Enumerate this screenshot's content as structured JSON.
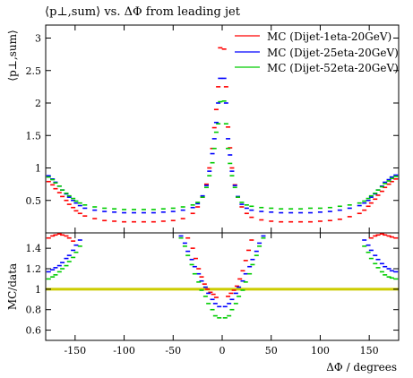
{
  "chart_data": [
    {
      "type": "scatter",
      "title": "⟨p⊥,sum⟩ vs. ΔΦ from leading jet",
      "ylabel": "⟨p⊥,sum⟩",
      "xlabel": "",
      "xlim": [
        -180,
        180
      ],
      "ylim": [
        0,
        3.2
      ],
      "yticks": [
        0.5,
        1,
        1.5,
        2,
        2.5,
        3
      ],
      "ytick_labels": [
        "0.5",
        "1",
        "1.5",
        "2",
        "2.5",
        "3"
      ],
      "legend_position": "top-right",
      "series": [
        {
          "name": "MC (Dijet-1eta-20GeV)",
          "color": "#ff0000",
          "x": [
            -177,
            -173,
            -170,
            -166,
            -163,
            -159,
            -156,
            -152,
            -149,
            -145,
            -140,
            -130,
            -120,
            -110,
            -100,
            -90,
            -80,
            -70,
            -60,
            -50,
            -40,
            -30,
            -25,
            -20,
            -16,
            -13,
            -10,
            -8,
            -6,
            -4,
            -2,
            2,
            4,
            6,
            8,
            10,
            13,
            16,
            20,
            25,
            30,
            40,
            50,
            60,
            70,
            80,
            90,
            100,
            110,
            120,
            130,
            140,
            145,
            149,
            152,
            156,
            159,
            163,
            166,
            170,
            173,
            177
          ],
          "y": [
            0.79,
            0.74,
            0.68,
            0.62,
            0.56,
            0.5,
            0.44,
            0.39,
            0.34,
            0.3,
            0.26,
            0.22,
            0.19,
            0.18,
            0.17,
            0.17,
            0.17,
            0.17,
            0.18,
            0.19,
            0.22,
            0.3,
            0.4,
            0.55,
            0.75,
            1.0,
            1.3,
            1.62,
            1.9,
            2.25,
            2.85,
            2.83,
            2.25,
            1.63,
            1.31,
            1.0,
            0.74,
            0.55,
            0.4,
            0.3,
            0.24,
            0.2,
            0.18,
            0.17,
            0.17,
            0.17,
            0.17,
            0.18,
            0.19,
            0.21,
            0.25,
            0.3,
            0.35,
            0.41,
            0.46,
            0.52,
            0.58,
            0.64,
            0.7,
            0.75,
            0.79,
            0.83
          ]
        },
        {
          "name": "MC (Dijet-25eta-20GeV)",
          "color": "#0000ff",
          "x": [
            -177,
            -173,
            -170,
            -166,
            -163,
            -159,
            -156,
            -152,
            -149,
            -145,
            -140,
            -130,
            -120,
            -110,
            -100,
            -90,
            -80,
            -70,
            -60,
            -50,
            -40,
            -30,
            -25,
            -20,
            -16,
            -13,
            -10,
            -8,
            -6,
            -4,
            -2,
            2,
            4,
            6,
            8,
            10,
            13,
            16,
            20,
            25,
            30,
            40,
            50,
            60,
            70,
            80,
            90,
            100,
            110,
            120,
            130,
            140,
            145,
            149,
            152,
            156,
            159,
            163,
            166,
            170,
            173,
            177
          ],
          "y": [
            0.88,
            0.83,
            0.78,
            0.72,
            0.66,
            0.6,
            0.55,
            0.5,
            0.46,
            0.42,
            0.38,
            0.35,
            0.33,
            0.32,
            0.31,
            0.31,
            0.31,
            0.31,
            0.32,
            0.33,
            0.35,
            0.39,
            0.45,
            0.57,
            0.73,
            0.95,
            1.22,
            1.45,
            1.7,
            2.0,
            2.38,
            2.38,
            2.0,
            1.45,
            1.2,
            0.95,
            0.73,
            0.56,
            0.44,
            0.38,
            0.35,
            0.33,
            0.32,
            0.31,
            0.31,
            0.31,
            0.31,
            0.32,
            0.33,
            0.35,
            0.38,
            0.42,
            0.46,
            0.5,
            0.55,
            0.6,
            0.66,
            0.72,
            0.78,
            0.82,
            0.86,
            0.89
          ]
        },
        {
          "name": "MC (Dijet-52eta-20GeV)",
          "color": "#00cc00",
          "x": [
            -177,
            -173,
            -170,
            -166,
            -163,
            -159,
            -156,
            -152,
            -149,
            -145,
            -140,
            -130,
            -120,
            -110,
            -100,
            -90,
            -80,
            -70,
            -60,
            -50,
            -40,
            -30,
            -25,
            -20,
            -16,
            -13,
            -10,
            -8,
            -6,
            -4,
            -2,
            2,
            4,
            6,
            8,
            10,
            13,
            16,
            20,
            25,
            30,
            40,
            50,
            60,
            70,
            80,
            90,
            100,
            110,
            120,
            130,
            140,
            145,
            149,
            152,
            156,
            159,
            163,
            166,
            170,
            173,
            177
          ],
          "y": [
            0.86,
            0.82,
            0.77,
            0.72,
            0.66,
            0.61,
            0.57,
            0.53,
            0.49,
            0.46,
            0.43,
            0.4,
            0.38,
            0.37,
            0.36,
            0.36,
            0.36,
            0.36,
            0.37,
            0.38,
            0.4,
            0.43,
            0.47,
            0.55,
            0.7,
            0.88,
            1.08,
            1.3,
            1.55,
            1.68,
            2.02,
            2.03,
            1.68,
            1.3,
            1.07,
            0.88,
            0.7,
            0.55,
            0.47,
            0.43,
            0.41,
            0.39,
            0.38,
            0.37,
            0.37,
            0.37,
            0.38,
            0.38,
            0.39,
            0.41,
            0.43,
            0.46,
            0.49,
            0.53,
            0.57,
            0.61,
            0.66,
            0.71,
            0.76,
            0.8,
            0.84,
            0.87
          ]
        }
      ]
    },
    {
      "type": "scatter",
      "title": "",
      "ylabel": "MC/data",
      "xlabel": "ΔΦ / degrees",
      "xlim": [
        -180,
        180
      ],
      "ylim": [
        0.5,
        1.55
      ],
      "xticks": [
        -150,
        -100,
        -50,
        0,
        50,
        100,
        150
      ],
      "xtick_labels": [
        "-150",
        "-100",
        "-50",
        "0",
        "50",
        "100",
        "150"
      ],
      "yticks": [
        0.6,
        0.8,
        1,
        1.2,
        1.4
      ],
      "ytick_labels": [
        "0.6",
        "0.8",
        "1",
        "1.2",
        "1.4"
      ],
      "reference": {
        "y": 1.0,
        "color": "#cccc00"
      },
      "series": [
        {
          "name": "MC (Dijet-1eta-20GeV)",
          "color": "#ff0000",
          "x": [
            -177,
            -173,
            -170,
            -166,
            -163,
            -159,
            -156,
            -152,
            -35,
            -30,
            -27,
            -24,
            -21,
            -18,
            -15,
            -12,
            -9,
            -6,
            6,
            9,
            12,
            15,
            18,
            21,
            24,
            27,
            30,
            152,
            156,
            159,
            163,
            166,
            170,
            173,
            177
          ],
          "y": [
            1.5,
            1.52,
            1.53,
            1.54,
            1.53,
            1.52,
            1.5,
            1.47,
            1.5,
            1.4,
            1.3,
            1.2,
            1.12,
            1.05,
            1.0,
            0.97,
            0.95,
            0.92,
            0.93,
            0.96,
            0.99,
            1.03,
            1.1,
            1.18,
            1.28,
            1.38,
            1.48,
            1.5,
            1.52,
            1.53,
            1.54,
            1.53,
            1.52,
            1.51,
            1.5
          ]
        },
        {
          "name": "MC (Dijet-25eta-20GeV)",
          "color": "#0000ff",
          "x": [
            -177,
            -173,
            -170,
            -166,
            -163,
            -159,
            -156,
            -152,
            -149,
            -145,
            -42,
            -38,
            -35,
            -31,
            -28,
            -24,
            -21,
            -17,
            -14,
            -10,
            -7,
            -3,
            3,
            7,
            10,
            14,
            17,
            21,
            24,
            28,
            31,
            35,
            38,
            42,
            145,
            149,
            152,
            156,
            159,
            163,
            166,
            170,
            173,
            177
          ],
          "y": [
            1.17,
            1.19,
            1.21,
            1.23,
            1.26,
            1.3,
            1.33,
            1.38,
            1.43,
            1.48,
            1.52,
            1.45,
            1.37,
            1.29,
            1.22,
            1.15,
            1.08,
            1.02,
            0.96,
            0.9,
            0.86,
            0.83,
            0.83,
            0.86,
            0.9,
            0.96,
            1.02,
            1.08,
            1.15,
            1.22,
            1.29,
            1.37,
            1.45,
            1.52,
            1.48,
            1.43,
            1.38,
            1.33,
            1.29,
            1.25,
            1.22,
            1.2,
            1.18,
            1.17
          ]
        },
        {
          "name": "MC (Dijet-52eta-20GeV)",
          "color": "#00cc00",
          "x": [
            -177,
            -173,
            -170,
            -166,
            -163,
            -159,
            -156,
            -152,
            -149,
            -145,
            -42,
            -38,
            -35,
            -31,
            -28,
            -24,
            -21,
            -17,
            -14,
            -10,
            -7,
            -3,
            3,
            7,
            10,
            14,
            17,
            21,
            24,
            28,
            31,
            35,
            38,
            42,
            145,
            149,
            152,
            156,
            159,
            163,
            166,
            170,
            173,
            177
          ],
          "y": [
            1.1,
            1.12,
            1.14,
            1.17,
            1.2,
            1.23,
            1.27,
            1.31,
            1.36,
            1.42,
            1.5,
            1.42,
            1.33,
            1.24,
            1.15,
            1.07,
            0.99,
            0.93,
            0.86,
            0.8,
            0.74,
            0.72,
            0.72,
            0.74,
            0.8,
            0.86,
            0.93,
            0.99,
            1.07,
            1.15,
            1.24,
            1.33,
            1.42,
            1.5,
            1.42,
            1.36,
            1.3,
            1.25,
            1.21,
            1.17,
            1.14,
            1.12,
            1.11,
            1.1
          ]
        }
      ]
    }
  ]
}
